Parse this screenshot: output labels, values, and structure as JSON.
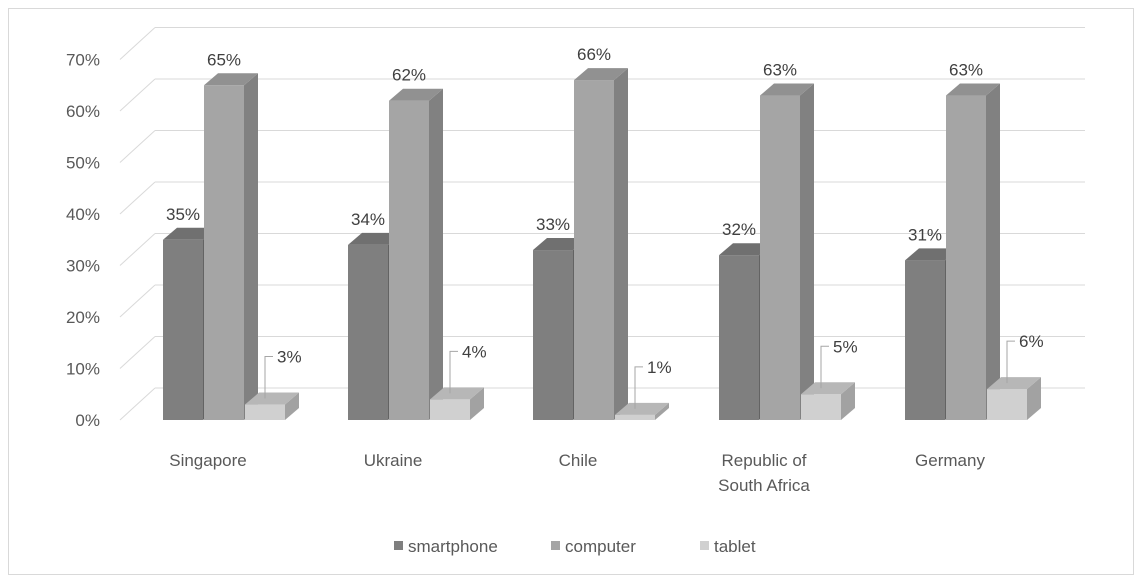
{
  "chart_data": {
    "type": "bar",
    "categories": [
      "Singapore",
      "Ukraine",
      "Chile",
      "Republic of South Africa",
      "Germany"
    ],
    "category_lines": [
      [
        "Singapore"
      ],
      [
        "Ukraine"
      ],
      [
        "Chile"
      ],
      [
        "Republic of",
        "South Africa"
      ],
      [
        "Germany"
      ]
    ],
    "series": [
      {
        "name": "smartphone",
        "values": [
          35,
          34,
          33,
          32,
          31
        ],
        "labels": [
          "35%",
          "34%",
          "33%",
          "32%",
          "31%"
        ],
        "color": "#7f7f7f"
      },
      {
        "name": "computer",
        "values": [
          65,
          62,
          66,
          63,
          63
        ],
        "labels": [
          "65%",
          "62%",
          "66%",
          "63%",
          "63%"
        ],
        "color": "#a5a5a5"
      },
      {
        "name": "tablet",
        "values": [
          3,
          4,
          1,
          5,
          6
        ],
        "labels": [
          "3%",
          "4%",
          "1%",
          "5%",
          "6%"
        ],
        "color": "#d0d0d0"
      }
    ],
    "y_ticks": [
      "0%",
      "10%",
      "20%",
      "30%",
      "40%",
      "50%",
      "60%",
      "70%"
    ],
    "ylim": [
      0,
      70
    ],
    "grid": true,
    "legend_position": "bottom",
    "style": "3d-clustered-column"
  }
}
